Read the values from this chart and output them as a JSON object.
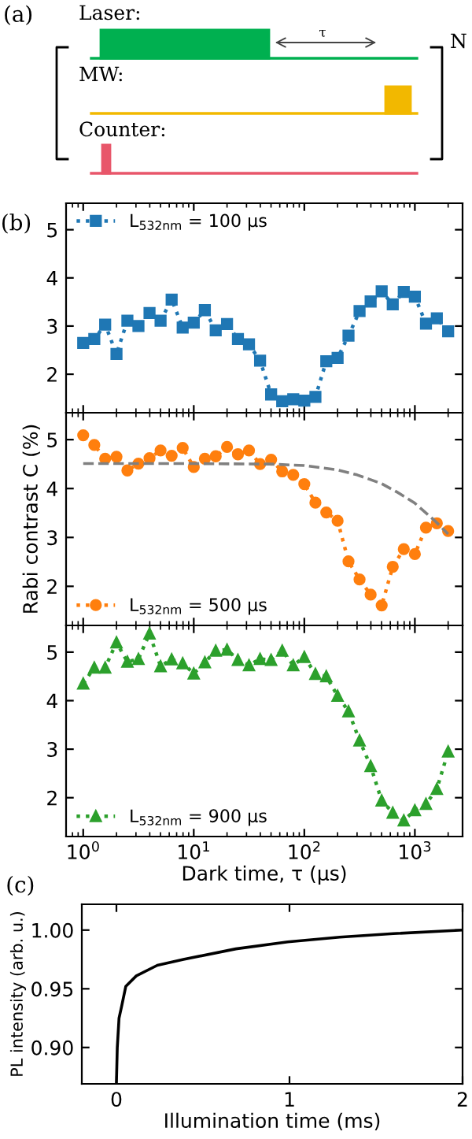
{
  "chart_data": [
    {
      "type": "other",
      "title": "(a)",
      "annotations": [
        "Laser:",
        "τ",
        "N",
        "MW:",
        "Counter:"
      ]
    },
    {
      "type": "line",
      "title": "(b)",
      "x": [
        1,
        1.26,
        1.58,
        2,
        2.51,
        3.16,
        3.98,
        5.01,
        6.31,
        7.94,
        10,
        12.6,
        15.8,
        20,
        25.1,
        31.6,
        39.8,
        50.1,
        63.1,
        79.4,
        100,
        126,
        158,
        200,
        251,
        316,
        398,
        501,
        631,
        794,
        1000,
        1260,
        1580,
        2000
      ],
      "series": [
        {
          "name": "L$_{532nm}$ = 100 μs",
          "color": "#1f77b4",
          "values": [
            2.65,
            2.73,
            3.03,
            2.42,
            3.11,
            3.0,
            3.27,
            3.11,
            3.55,
            2.97,
            3.07,
            3.33,
            2.91,
            3.04,
            2.73,
            2.62,
            2.28,
            1.58,
            1.44,
            1.48,
            1.45,
            1.53,
            2.27,
            2.34,
            2.8,
            3.31,
            3.51,
            3.72,
            3.45,
            3.71,
            3.61,
            3.05,
            3.16,
            2.89
          ]
        }
      ],
      "marker": "square",
      "line_style": "dotted",
      "log": "x",
      "xlim": [
        0.7,
        2700
      ],
      "xticks": [
        {
          "value": 1,
          "label": null
        },
        {
          "value": 10,
          "label": null
        },
        {
          "value": 100,
          "label": null
        },
        {
          "value": 1000,
          "label": null
        }
      ],
      "ylim": [
        1.2,
        5.55
      ],
      "yticks": [
        2,
        3,
        4,
        5
      ],
      "tick_labels": "y",
      "legend": "top left"
    },
    {
      "type": "line",
      "ylabel": "Rabi contrast C (%)",
      "x": [
        1,
        1.26,
        1.58,
        2,
        2.51,
        3.16,
        3.98,
        5.01,
        6.31,
        7.94,
        10,
        12.6,
        15.8,
        20,
        25.1,
        31.6,
        39.8,
        50.1,
        63.1,
        79.4,
        100,
        126,
        158,
        200,
        251,
        316,
        398,
        501,
        631,
        794,
        1000,
        1260,
        1580,
        2000
      ],
      "series": [
        {
          "name": "L$_{532nm}$ = 500 μs",
          "color": "#ff7f0e",
          "values": [
            5.09,
            4.89,
            4.61,
            4.65,
            4.37,
            4.51,
            4.62,
            4.78,
            4.67,
            4.83,
            4.44,
            4.61,
            4.66,
            4.85,
            4.7,
            4.78,
            4.5,
            4.59,
            4.35,
            4.28,
            4.09,
            3.71,
            3.51,
            3.34,
            2.51,
            2.14,
            1.83,
            1.61,
            2.4,
            2.76,
            2.66,
            3.2,
            3.29,
            3.13
          ]
        },
        {
          "color": "#808080",
          "marker": "none",
          "line_style": "dashed",
          "x": [
            1,
            10,
            50,
            100,
            200,
            300,
            500,
            700,
            1000,
            1500,
            2000
          ],
          "values": [
            4.51,
            4.51,
            4.5,
            4.47,
            4.38,
            4.28,
            4.1,
            3.92,
            3.7,
            3.35,
            3.07
          ]
        }
      ],
      "marker": "circle",
      "line_style": "dotted",
      "log": "x",
      "xlim": [
        0.7,
        2700
      ],
      "xticks": [
        {
          "value": 1,
          "label": null
        },
        {
          "value": 10,
          "label": null
        },
        {
          "value": 100,
          "label": null
        },
        {
          "value": 1000,
          "label": null
        }
      ],
      "ylim": [
        1.2,
        5.55
      ],
      "yticks": [
        2,
        3,
        4,
        5
      ],
      "tick_labels": "y",
      "legend": "bottom left"
    },
    {
      "type": "line",
      "xlabel": "Dark time, τ (μs)",
      "x": [
        1,
        1.26,
        1.58,
        2,
        2.51,
        3.16,
        3.98,
        5.01,
        6.31,
        7.94,
        10,
        12.6,
        15.8,
        20,
        25.1,
        31.6,
        39.8,
        50.1,
        63.1,
        79.4,
        100,
        126,
        158,
        200,
        251,
        316,
        398,
        501,
        631,
        794,
        1000,
        1260,
        1580,
        2000
      ],
      "series": [
        {
          "name": "L$_{532nm}$ = 900 μs",
          "color": "#2ca02c",
          "values": [
            4.35,
            4.68,
            4.68,
            5.2,
            4.8,
            4.86,
            5.38,
            4.71,
            4.85,
            4.77,
            4.56,
            4.79,
            5.03,
            5.05,
            4.84,
            4.73,
            4.86,
            4.84,
            5.03,
            4.73,
            4.9,
            4.55,
            4.5,
            4.1,
            3.78,
            3.18,
            2.65,
            1.94,
            1.69,
            1.53,
            1.74,
            1.87,
            2.18,
            2.95
          ]
        }
      ],
      "marker": "triangle",
      "line_style": "dotted",
      "log": "x",
      "xlim": [
        0.7,
        2700
      ],
      "xticks": [
        {
          "value": 1,
          "label": "10$^{0}$"
        },
        {
          "value": 10,
          "label": "10$^{1}$"
        },
        {
          "value": 100,
          "label": "10$^{2}$"
        },
        {
          "value": 1000,
          "label": "10$^{3}$"
        }
      ],
      "ylim": [
        1.2,
        5.55
      ],
      "yticks": [
        2,
        3,
        4,
        5
      ],
      "legend": "bottom left"
    },
    {
      "type": "line",
      "title": "(c)",
      "xlabel": "Illumination time (ms)",
      "ylabel": "PL intensity (arb. u.)",
      "x": [
        0,
        0.005,
        0.015,
        0.03,
        0.054,
        0.115,
        0.236,
        0.387,
        0.69,
        0.99,
        1.29,
        1.6,
        2.0
      ],
      "series": [
        {
          "color": "#000000",
          "values": [
            0.87,
            0.9,
            0.925,
            0.935,
            0.952,
            0.961,
            0.97,
            0.975,
            0.984,
            0.99,
            0.994,
            0.997,
            1.0
          ]
        }
      ],
      "marker": "none",
      "line_style": "solid",
      "xlim": [
        -0.2,
        2.0
      ],
      "xticks": [
        0,
        1,
        2
      ],
      "ylim": [
        0.869,
        1.022
      ],
      "yticks": [
        {
          "value": 0.9,
          "label": "0.90"
        },
        {
          "value": 0.95,
          "label": "0.95"
        },
        {
          "value": 1.0,
          "label": "1.00"
        }
      ]
    }
  ]
}
